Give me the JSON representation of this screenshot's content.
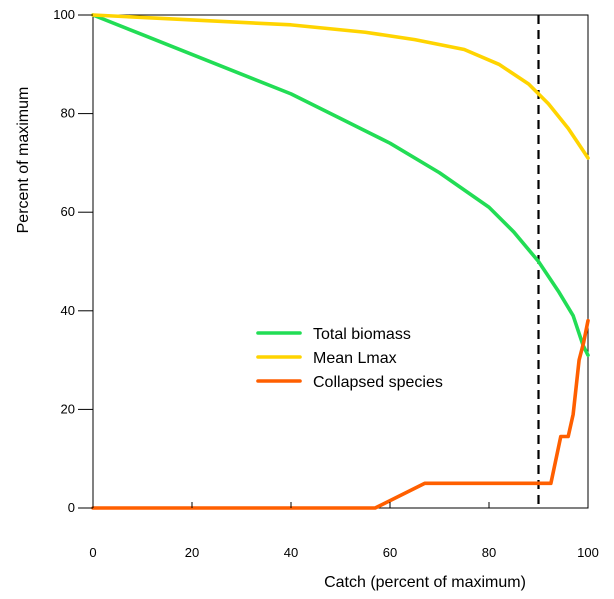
{
  "chart_data": {
    "type": "line",
    "xlabel": "Catch (percent of maximum)",
    "ylabel": "Percent of maximum",
    "xlim": [
      0,
      100
    ],
    "ylim": [
      0,
      100
    ],
    "x_ticks": [
      0,
      20,
      40,
      60,
      80,
      100
    ],
    "y_ticks": [
      0,
      20,
      40,
      60,
      80,
      100
    ],
    "x_tick_labels": [
      "0",
      "20",
      "40",
      "60",
      "80",
      "100"
    ],
    "y_tick_labels": [
      "0",
      "20",
      "40",
      "60",
      "80",
      "100"
    ],
    "grid": false,
    "legend_position": "center",
    "reference_line": {
      "x": 90,
      "style": "dashed",
      "color": "#000000"
    },
    "series": [
      {
        "name": "Total biomass",
        "color": "#22dd55",
        "points": [
          [
            0,
            100
          ],
          [
            10,
            96
          ],
          [
            20,
            92
          ],
          [
            30,
            88
          ],
          [
            40,
            84
          ],
          [
            50,
            79
          ],
          [
            60,
            74
          ],
          [
            70,
            68
          ],
          [
            80,
            61
          ],
          [
            85,
            56
          ],
          [
            90,
            50
          ],
          [
            94,
            44
          ],
          [
            97,
            39
          ],
          [
            99,
            33
          ],
          [
            100,
            31
          ]
        ]
      },
      {
        "name": "Mean Lmax",
        "color": "#ffd400",
        "points": [
          [
            0,
            100
          ],
          [
            20,
            99
          ],
          [
            40,
            98
          ],
          [
            55,
            96.5
          ],
          [
            65,
            95
          ],
          [
            75,
            93
          ],
          [
            82,
            90
          ],
          [
            88,
            86
          ],
          [
            92,
            82
          ],
          [
            96,
            77
          ],
          [
            98,
            74
          ],
          [
            100,
            71
          ]
        ]
      },
      {
        "name": "Collapsed species",
        "color": "#ff5f00",
        "points": [
          [
            0,
            0
          ],
          [
            57,
            0
          ],
          [
            67,
            5
          ],
          [
            92.5,
            5
          ],
          [
            94.5,
            14.5
          ],
          [
            96,
            14.5
          ],
          [
            97,
            19
          ],
          [
            98.2,
            30
          ],
          [
            99.1,
            33.5
          ],
          [
            100,
            38
          ]
        ]
      }
    ]
  }
}
